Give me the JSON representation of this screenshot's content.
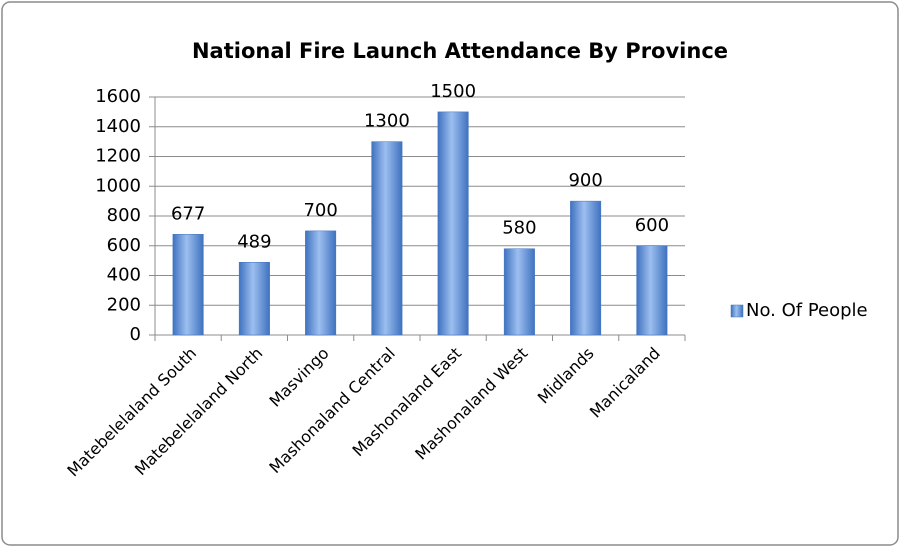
{
  "chart_data": {
    "type": "bar",
    "title": "National Fire Launch Attendance By Province",
    "categories": [
      "Matebelelaland South",
      "Matebelelaland North",
      "Masvingo",
      "Mashonaland Central",
      "Mashonaland East",
      "Mashonaland West",
      "Midlands",
      "Manicaland"
    ],
    "series": [
      {
        "name": "No. Of People",
        "color": "#3f72bf",
        "values": [
          677,
          489,
          700,
          1300,
          1500,
          580,
          900,
          600
        ]
      }
    ],
    "ylim": [
      0,
      1600
    ],
    "yticks": [
      0,
      200,
      400,
      600,
      800,
      1000,
      1200,
      1400,
      1600
    ],
    "grid": true,
    "legend": "right",
    "data_labels": true
  }
}
